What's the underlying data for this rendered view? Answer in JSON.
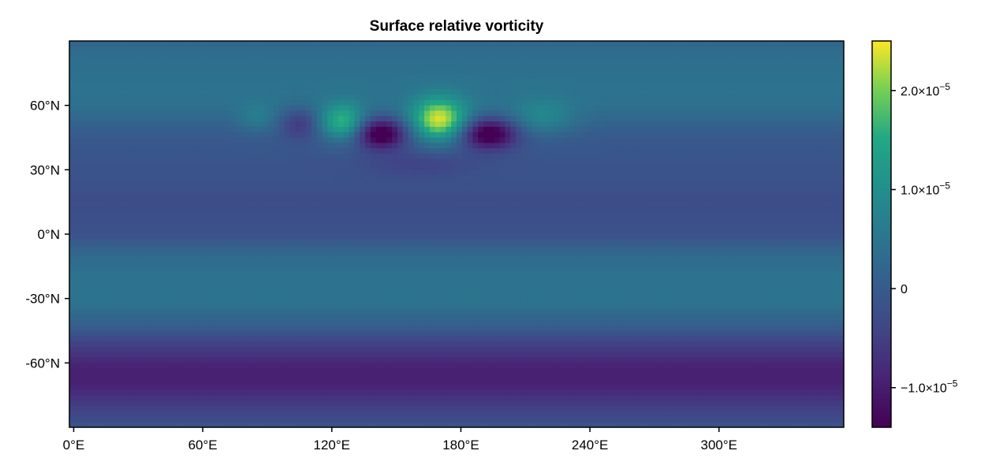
{
  "chart_data": {
    "type": "heatmap",
    "title": "Surface relative vorticity",
    "colormap": "viridis",
    "x_axis": {
      "range": [
        -2,
        358
      ],
      "ticks": [
        0,
        60,
        120,
        180,
        240,
        300
      ],
      "tick_labels": [
        "0°E",
        "60°E",
        "120°E",
        "180°E",
        "240°E",
        "300°E"
      ]
    },
    "y_axis": {
      "range": [
        -90,
        90
      ],
      "ticks": [
        60,
        30,
        0,
        -30,
        -60
      ],
      "tick_labels": [
        "60°N",
        "30°N",
        "0°N",
        "-30°N",
        "-60°N"
      ]
    },
    "colorbar": {
      "range": [
        -1.4e-05,
        2.5e-05
      ],
      "ticks": [
        2e-05,
        1e-05,
        0,
        -1e-05
      ],
      "tick_labels": [
        {
          "mantissa": "2.0×10",
          "exponent": "−5"
        },
        {
          "mantissa": "1.0×10",
          "exponent": "−5"
        },
        {
          "mantissa": "0",
          "exponent": ""
        },
        {
          "mantissa": "−1.0×10",
          "exponent": "−5"
        }
      ]
    },
    "zonal_profile": [
      {
        "lat": 90,
        "value": 2e-06
      },
      {
        "lat": 82,
        "value": 3.5e-06
      },
      {
        "lat": 70,
        "value": 4.5e-06
      },
      {
        "lat": 60,
        "value": 4e-06
      },
      {
        "lat": 45,
        "value": -5e-07
      },
      {
        "lat": 30,
        "value": -1.5e-06
      },
      {
        "lat": 15,
        "value": -2.5e-06
      },
      {
        "lat": 0,
        "value": -2e-06
      },
      {
        "lat": -8,
        "value": 2e-06
      },
      {
        "lat": -20,
        "value": 4.5e-06
      },
      {
        "lat": -32,
        "value": 4.5e-06
      },
      {
        "lat": -42,
        "value": 1e-06
      },
      {
        "lat": -52,
        "value": -5e-06
      },
      {
        "lat": -62,
        "value": -9.5e-06
      },
      {
        "lat": -70,
        "value": -9.5e-06
      },
      {
        "lat": -78,
        "value": -6e-06
      },
      {
        "lat": -90,
        "value": -1.5e-06
      }
    ],
    "eddies": [
      {
        "lon": 85,
        "lat": 54,
        "value": 4e-06,
        "sx": 6,
        "sy": 5
      },
      {
        "lon": 105,
        "lat": 52,
        "value": -7e-06,
        "sx": 6,
        "sy": 5
      },
      {
        "lon": 125,
        "lat": 52,
        "value": 1.5e-05,
        "sx": 7,
        "sy": 6
      },
      {
        "lon": 143,
        "lat": 47,
        "value": -1.7e-05,
        "sx": 8,
        "sy": 5
      },
      {
        "lon": 170,
        "lat": 53,
        "value": 2.2e-05,
        "sx": 9,
        "sy": 7
      },
      {
        "lon": 193,
        "lat": 47,
        "value": -1.7e-05,
        "sx": 9,
        "sy": 5
      },
      {
        "lon": 218,
        "lat": 54,
        "value": 6e-06,
        "sx": 10,
        "sy": 6
      },
      {
        "lon": 160,
        "lat": 33,
        "value": -3e-06,
        "sx": 18,
        "sy": 4
      }
    ]
  }
}
